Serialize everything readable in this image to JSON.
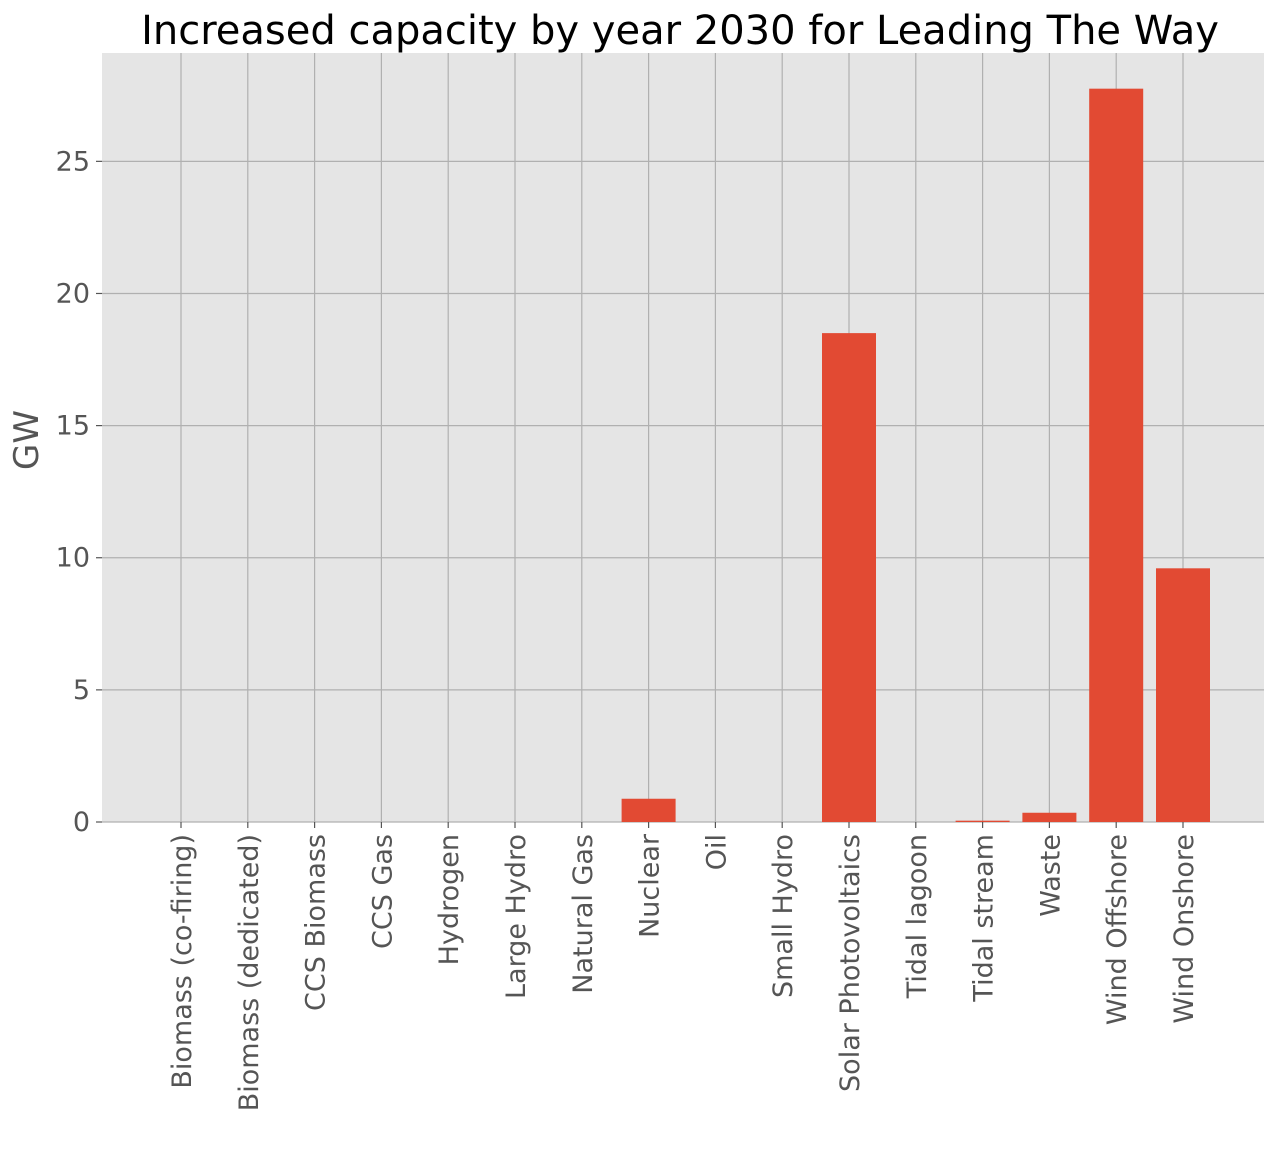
{
  "chart_data": {
    "type": "bar",
    "title": "Increased capacity by year 2030 for Leading The Way",
    "xlabel": "",
    "ylabel": "GW",
    "categories": [
      "Biomass (co-firing)",
      "Biomass (dedicated)",
      "CCS Biomass",
      "CCS Gas",
      "Hydrogen",
      "Large Hydro",
      "Natural Gas",
      "Nuclear",
      "Oil",
      "Small Hydro",
      "Solar Photovoltaics",
      "Tidal lagoon",
      "Tidal stream",
      "Waste",
      "Wind Offshore",
      "Wind Onshore"
    ],
    "values": [
      0,
      0,
      0,
      0,
      0,
      0,
      0,
      0.88,
      0,
      0,
      18.5,
      0,
      0.05,
      0.35,
      27.75,
      9.6
    ],
    "ylim": [
      0,
      29.1
    ],
    "yticks": [
      0,
      5,
      10,
      15,
      20,
      25
    ],
    "grid": true,
    "bar_color": "#E24A33",
    "background_color": "#E5E5E5",
    "grid_color": "#B0B0B0"
  }
}
